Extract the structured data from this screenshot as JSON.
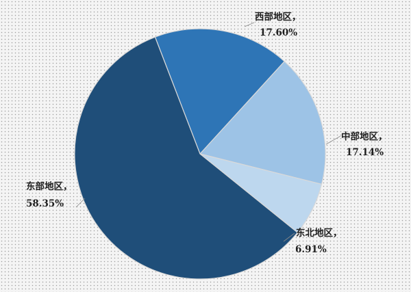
{
  "chart_data": {
    "type": "pie",
    "slices": [
      {
        "name": "西部地区",
        "label_value": "17.60%",
        "value": 17.6,
        "color": "#2e75b6"
      },
      {
        "name": "中部地区",
        "label_value": "17.14%",
        "value": 17.14,
        "color": "#9dc3e6"
      },
      {
        "name": "东北地区",
        "label_value": "6.91%",
        "value": 6.91,
        "color": "#bdd7ee"
      },
      {
        "name": "东部地区",
        "label_value": "58.35%",
        "value": 58.35,
        "color": "#1f4e79"
      }
    ],
    "label_separator": "，",
    "legend": "none",
    "slice_border_color": "#d9d9d9"
  }
}
